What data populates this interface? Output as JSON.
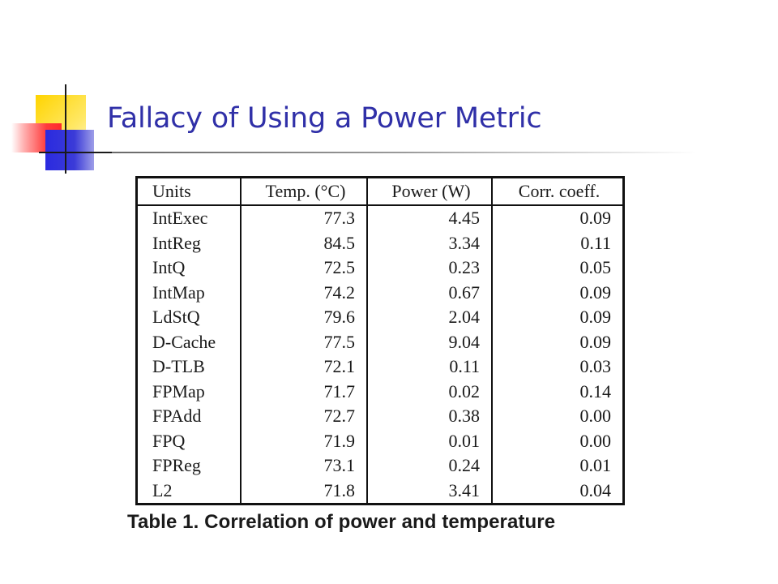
{
  "slide": {
    "title": "Fallacy of Using a Power Metric"
  },
  "table": {
    "headers": [
      "Units",
      "Temp. (°C)",
      "Power (W)",
      "Corr. coeff."
    ],
    "rows": [
      [
        "IntExec",
        "77.3",
        "4.45",
        "0.09"
      ],
      [
        "IntReg",
        "84.5",
        "3.34",
        "0.11"
      ],
      [
        "IntQ",
        "72.5",
        "0.23",
        "0.05"
      ],
      [
        "IntMap",
        "74.2",
        "0.67",
        "0.09"
      ],
      [
        "LdStQ",
        "79.6",
        "2.04",
        "0.09"
      ],
      [
        "D-Cache",
        "77.5",
        "9.04",
        "0.09"
      ],
      [
        "D-TLB",
        "72.1",
        "0.11",
        "0.03"
      ],
      [
        "FPMap",
        "71.7",
        "0.02",
        "0.14"
      ],
      [
        "FPAdd",
        "72.7",
        "0.38",
        "0.00"
      ],
      [
        "FPQ",
        "71.9",
        "0.01",
        "0.00"
      ],
      [
        "FPReg",
        "73.1",
        "0.24",
        "0.01"
      ],
      [
        "L2",
        "71.8",
        "3.41",
        "0.04"
      ]
    ],
    "caption": "Table 1. Correlation of power and temperature"
  },
  "colors": {
    "title": "#3030a8",
    "accent_yellow": "#ffd400",
    "accent_red": "#ff2a2a",
    "accent_blue": "#2a2ae0"
  }
}
